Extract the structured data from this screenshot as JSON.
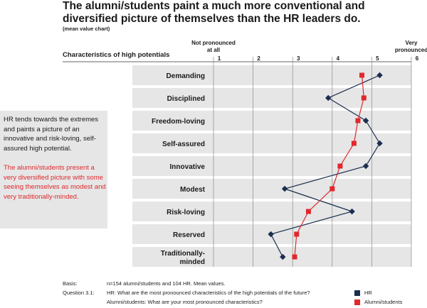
{
  "header": {
    "title": "The alumni/students paint a much more conventional and diversified picture of themselves than the HR leaders do.",
    "subtitle": "(mean value chart)"
  },
  "chart_data": {
    "type": "line",
    "title": "The alumni/students paint a much more conventional and diversified picture of themselves than the HR leaders do.",
    "subtitle": "(mean value chart)",
    "category_header": "Characteristics of high potentials",
    "scale_low_label": "Not pronounced at all",
    "scale_high_label": "Very pronounced",
    "xlim": [
      1,
      6
    ],
    "ticks": [
      "1",
      "2",
      "3",
      "4",
      "5",
      "6"
    ],
    "categories": [
      "Demanding",
      "Disciplined",
      "Freedom-loving",
      "Self-assured",
      "Innovative",
      "Modest",
      "Risk-loving",
      "Reserved",
      "Traditionally-minded"
    ],
    "series": [
      {
        "name": "HR",
        "color": "#1b2e4f",
        "marker": "diamond",
        "values": [
          5.2,
          3.9,
          4.85,
          5.2,
          4.85,
          2.8,
          4.5,
          2.45,
          2.75
        ]
      },
      {
        "name": "Alumni/students",
        "color": "#e0282d",
        "marker": "square",
        "values": [
          4.75,
          4.8,
          4.65,
          4.55,
          4.2,
          4.0,
          3.4,
          3.1,
          3.05
        ]
      }
    ],
    "grid": true,
    "legend_position": "bottom-right"
  },
  "side_note": {
    "hr_text": "HR tends towards the extremes and paints a picture of an innovative and risk-loving, self-assured high potential.",
    "alumni_text": "The alumni/students present a very diversified picture with some seeing themselves as modest and very traditionally-minded."
  },
  "footer": {
    "basis_label": "Basis:",
    "basis_text": "n=154 alumni/students and 104 HR. Mean values.",
    "question_label": "Question 3.1:",
    "question_hr": "HR: What are the most pronounced characteristics of the high potentials of the future?",
    "question_alumni": "Alumni/students: What are your most pronounced characteristics?"
  },
  "legend": {
    "hr": "HR",
    "alumni": "Alumni/students"
  }
}
